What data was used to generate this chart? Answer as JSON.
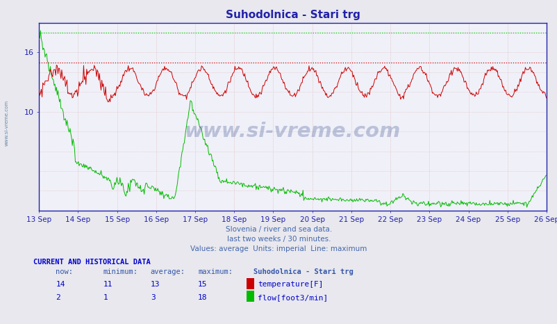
{
  "title": "Suhodolnica - Stari trg",
  "xlabel_dates": [
    "13 Sep",
    "14 Sep",
    "15 Sep",
    "16 Sep",
    "17 Sep",
    "18 Sep",
    "19 Sep",
    "20 Sep",
    "21 Sep",
    "22 Sep",
    "23 Sep",
    "24 Sep",
    "25 Sep",
    "26 Sep"
  ],
  "ylim": [
    0,
    19
  ],
  "yticks": [
    10,
    16
  ],
  "temp_max_val": 15,
  "flow_max_val": 18,
  "temp_color": "#cc0000",
  "flow_color": "#00bb00",
  "hline_temp_color": "#cc0000",
  "hline_flow_color": "#00cc00",
  "vgrid_color": "#ddbbbb",
  "hgrid_color": "#ddbbbb",
  "bg_color": "#e8e8ee",
  "plot_bg": "#f0f0f8",
  "axis_color": "#2222aa",
  "title_color": "#2222aa",
  "watermark_color": "#1a3580",
  "watermark": "www.si-vreme.com",
  "footer_line1": "Slovenia / river and sea data.",
  "footer_line2": "last two weeks / 30 minutes.",
  "footer_line3": "Values: average  Units: imperial  Line: maximum",
  "table_title": "CURRENT AND HISTORICAL DATA",
  "col_headers": [
    "now:",
    "minimum:",
    "average:",
    "maximum:",
    "Suhodolnica - Stari trg"
  ],
  "temp_row": [
    "14",
    "11",
    "13",
    "15"
  ],
  "flow_row": [
    "2",
    "1",
    "3",
    "18"
  ],
  "temp_label": "temperature[F]",
  "flow_label": "flow[foot3/min]",
  "n_points": 672
}
